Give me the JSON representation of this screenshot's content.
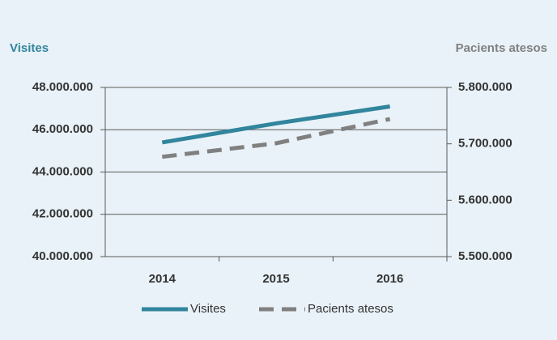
{
  "chart_data": {
    "type": "line",
    "y_axis_label": "Visites",
    "y2_axis_label": "Pacients atesos",
    "categories": [
      "2014",
      "2015",
      "2016"
    ],
    "series": [
      {
        "name": "Visites",
        "color": "#31859c",
        "values": [
          45400000,
          46300000,
          47100000
        ]
      },
      {
        "name": "Pacients atesos",
        "color": "#808080",
        "axis": "y2",
        "dashed": true,
        "values": [
          5677000,
          5701000,
          5744000
        ]
      }
    ],
    "ylim": [
      40000000,
      48000000
    ],
    "yticks": [
      {
        "value": 40000000,
        "label": "40.000.000"
      },
      {
        "value": 42000000,
        "label": "42.000.000"
      },
      {
        "value": 44000000,
        "label": "44.000.000"
      },
      {
        "value": 46000000,
        "label": "46.000.000"
      },
      {
        "value": 48000000,
        "label": "48.000.000"
      }
    ],
    "y2lim": [
      5500000,
      5800000
    ],
    "y2ticks": [
      {
        "value": 5500000,
        "label": "5.500.000"
      },
      {
        "value": 5600000,
        "label": "5.600.000"
      },
      {
        "value": 5700000,
        "label": "5.700.000"
      },
      {
        "value": 5800000,
        "label": "5.800.000"
      }
    ],
    "grid": true,
    "legend": "bottom"
  }
}
